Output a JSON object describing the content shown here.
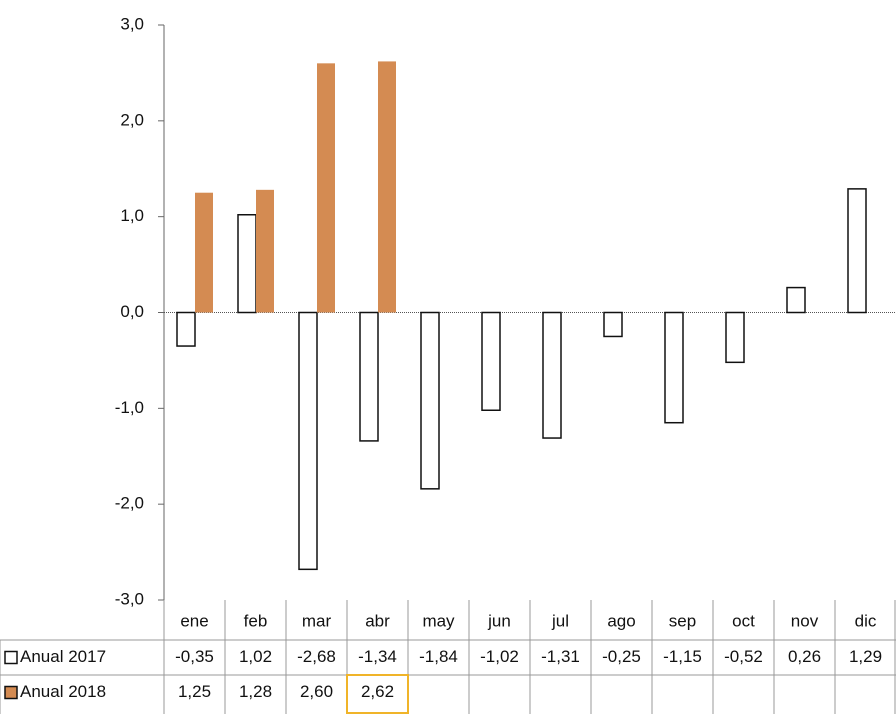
{
  "chart_data": {
    "type": "bar",
    "categories": [
      "ene",
      "feb",
      "mar",
      "abr",
      "may",
      "jun",
      "jul",
      "ago",
      "sep",
      "oct",
      "nov",
      "dic"
    ],
    "series": [
      {
        "name": "Anual 2017",
        "color": "#ffffff",
        "values": [
          -0.35,
          1.02,
          -2.68,
          -1.34,
          -1.84,
          -1.02,
          -1.31,
          -0.25,
          -1.15,
          -0.52,
          0.26,
          1.29
        ],
        "value_labels": [
          "-0,35",
          "1,02",
          "-2,68",
          "-1,34",
          "-1,84",
          "-1,02",
          "-1,31",
          "-0,25",
          "-1,15",
          "-0,52",
          "0,26",
          "1,29"
        ]
      },
      {
        "name": "Anual 2018",
        "color": "#d48b52",
        "values": [
          1.25,
          1.28,
          2.6,
          2.62,
          null,
          null,
          null,
          null,
          null,
          null,
          null,
          null
        ],
        "value_labels": [
          "1,25",
          "1,28",
          "2,60",
          "2,62",
          null,
          null,
          null,
          null,
          null,
          null,
          null,
          null
        ]
      }
    ],
    "ylim": [
      -3,
      3
    ],
    "yticks": [
      {
        "value": -3,
        "label": "-3,0"
      },
      {
        "value": -2,
        "label": "-2,0"
      },
      {
        "value": -1,
        "label": "-1,0"
      },
      {
        "value": 0,
        "label": "0,0"
      },
      {
        "value": 1,
        "label": "1,0"
      },
      {
        "value": 2,
        "label": "2,0"
      },
      {
        "value": 3,
        "label": "3,0"
      }
    ]
  }
}
